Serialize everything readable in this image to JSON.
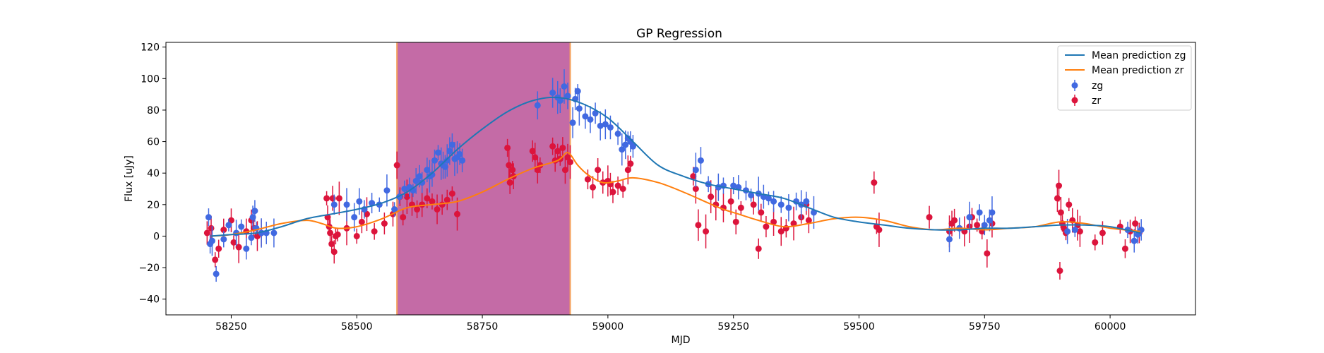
{
  "chart_data": {
    "type": "scatter",
    "title": "GP Regression",
    "xlabel": "MJD",
    "ylabel": "Flux [uJy]",
    "xlim": [
      58120,
      60170
    ],
    "ylim": [
      -50,
      123
    ],
    "xticks": [
      58250,
      58500,
      58750,
      59000,
      59250,
      59500,
      59750,
      60000
    ],
    "yticks": [
      -40,
      -20,
      0,
      20,
      40,
      60,
      80,
      100,
      120
    ],
    "grid": false,
    "legend_position": "top-right",
    "shaded_region": {
      "x0": 58580,
      "x1": 58925,
      "fill": "#c46ba6",
      "edge": "#f5a15c"
    },
    "series": [
      {
        "name": "Mean prediction zg",
        "kind": "line",
        "color": "#1f77b4",
        "x": [
          58210,
          58250,
          58300,
          58350,
          58400,
          58450,
          58500,
          58550,
          58600,
          58650,
          58700,
          58750,
          58800,
          58850,
          58900,
          58950,
          59000,
          59050,
          59100,
          59150,
          59200,
          59250,
          59300,
          59350,
          59400,
          59450,
          59500,
          59550,
          59600,
          59650,
          59700,
          59750,
          59800,
          59850,
          59900,
          59950,
          60000,
          60060
        ],
        "y": [
          0,
          1,
          2,
          6,
          11,
          14,
          17,
          21,
          28,
          40,
          55,
          68,
          79,
          86,
          88,
          84,
          75,
          60,
          45,
          38,
          33,
          30,
          27,
          24,
          18,
          12,
          9,
          7,
          5,
          4,
          4,
          5,
          5,
          6,
          7,
          7,
          6,
          2
        ]
      },
      {
        "name": "Mean prediction zr",
        "kind": "line",
        "color": "#ff7f0e",
        "x": [
          58210,
          58250,
          58300,
          58350,
          58400,
          58430,
          58460,
          58500,
          58550,
          58600,
          58650,
          58700,
          58750,
          58800,
          58850,
          58900,
          58920,
          58940,
          58960,
          58990,
          59020,
          59050,
          59100,
          59150,
          59200,
          59230,
          59260,
          59300,
          59350,
          59400,
          59450,
          59500,
          59550,
          59600,
          59650,
          59700,
          59750,
          59800,
          59850,
          59900,
          59950,
          60000,
          60060
        ],
        "y": [
          0,
          1,
          4,
          8,
          10,
          8,
          5,
          6,
          11,
          18,
          20,
          22,
          28,
          36,
          43,
          48,
          53,
          45,
          39,
          34,
          35,
          37,
          34,
          28,
          21,
          17,
          14,
          10,
          6,
          8,
          11,
          12,
          10,
          6,
          4,
          5,
          4,
          5,
          6,
          9,
          8,
          5,
          3
        ]
      },
      {
        "name": "zg",
        "kind": "errorbar",
        "color": "#4169e1",
        "x": [
          58205,
          58208,
          58212,
          58220,
          58235,
          58245,
          58260,
          58270,
          58280,
          58290,
          58293,
          58297,
          58300,
          58310,
          58320,
          58335,
          58455,
          58480,
          58495,
          58505,
          58515,
          58530,
          58545,
          58560,
          58575,
          58585,
          58595,
          58605,
          58612,
          58618,
          58625,
          58630,
          58640,
          58645,
          58650,
          58655,
          58662,
          58668,
          58672,
          58676,
          58680,
          58685,
          58690,
          58695,
          58700,
          58705,
          58710,
          58860,
          58890,
          58900,
          58905,
          58913,
          58920,
          58930,
          58935,
          58940,
          58943,
          58955,
          58965,
          58975,
          58985,
          58995,
          59005,
          59020,
          59028,
          59035,
          59040,
          59045,
          59050,
          59175,
          59185,
          59200,
          59220,
          59230,
          59250,
          59260,
          59275,
          59285,
          59300,
          59310,
          59320,
          59330,
          59345,
          59360,
          59375,
          59385,
          59395,
          59410,
          59680,
          59700,
          59720,
          59740,
          59750,
          59760,
          59765,
          59915,
          59930,
          60035,
          60048,
          60055,
          60062
        ],
        "y": [
          12,
          -5,
          -3,
          -24,
          -2,
          7,
          2,
          6,
          -8,
          -1,
          12,
          16,
          5,
          2,
          2,
          2,
          20,
          20,
          12,
          22,
          17,
          21,
          20,
          29,
          17,
          25,
          30,
          31,
          29,
          35,
          38,
          34,
          42,
          38,
          39,
          48,
          53,
          46,
          45,
          44,
          48,
          54,
          58,
          49,
          50,
          52,
          48,
          83,
          91,
          88,
          86,
          95,
          89,
          72,
          87,
          92,
          81,
          76,
          74,
          78,
          70,
          71,
          69,
          65,
          55,
          58,
          62,
          60,
          57,
          42,
          48,
          33,
          31,
          32,
          32,
          31,
          29,
          26,
          27,
          25,
          24,
          22,
          20,
          18,
          22,
          20,
          22,
          15,
          -2,
          5,
          12,
          15,
          7,
          10,
          15,
          3,
          4,
          4,
          -3,
          1,
          4
        ]
      },
      {
        "name": "zr",
        "kind": "errorbar",
        "color": "#dc143c",
        "x": [
          58202,
          58210,
          58218,
          58225,
          58235,
          58250,
          58255,
          58265,
          58280,
          58290,
          58295,
          58302,
          58310,
          58440,
          58442,
          58445,
          58447,
          58450,
          58452,
          58455,
          58458,
          58462,
          58465,
          58480,
          58500,
          58510,
          58520,
          58535,
          58555,
          58572,
          58580,
          58586,
          58592,
          58600,
          58610,
          58620,
          58630,
          58640,
          58650,
          58660,
          58670,
          58680,
          58690,
          58700,
          58800,
          58803,
          58805,
          58810,
          58812,
          58850,
          58855,
          58860,
          58865,
          58890,
          58895,
          58900,
          58905,
          58910,
          58915,
          58920,
          58925,
          58960,
          58970,
          58980,
          58990,
          59000,
          59005,
          59010,
          59020,
          59030,
          59040,
          59045,
          59170,
          59175,
          59180,
          59195,
          59205,
          59215,
          59230,
          59245,
          59255,
          59265,
          59290,
          59300,
          59305,
          59315,
          59330,
          59345,
          59355,
          59370,
          59385,
          59395,
          59400,
          59530,
          59535,
          59540,
          59640,
          59680,
          59685,
          59690,
          59700,
          59710,
          59720,
          59725,
          59735,
          59745,
          59755,
          59765,
          59895,
          59898,
          59900,
          59902,
          59905,
          59908,
          59912,
          59918,
          59925,
          59935,
          59940,
          59970,
          59985,
          60020,
          60030,
          60040,
          60050,
          60058
        ],
        "y": [
          2,
          5,
          -15,
          -8,
          4,
          10,
          -4,
          -7,
          3,
          10,
          5,
          0,
          2,
          24,
          12,
          6,
          2,
          -5,
          24,
          -10,
          0,
          1,
          24,
          5,
          0,
          9,
          14,
          3,
          8,
          14,
          45,
          25,
          12,
          25,
          20,
          17,
          20,
          24,
          22,
          17,
          20,
          23,
          27,
          14,
          56,
          45,
          34,
          42,
          38,
          54,
          50,
          42,
          45,
          57,
          48,
          54,
          49,
          56,
          42,
          50,
          47,
          36,
          31,
          42,
          34,
          35,
          33,
          28,
          32,
          30,
          42,
          46,
          38,
          30,
          7,
          3,
          25,
          20,
          18,
          22,
          9,
          18,
          20,
          -8,
          15,
          6,
          9,
          3,
          5,
          8,
          12,
          20,
          10,
          34,
          6,
          4,
          12,
          3,
          8,
          10,
          5,
          3,
          6,
          12,
          7,
          3,
          -11,
          8,
          24,
          32,
          -22,
          15,
          8,
          5,
          2,
          20,
          10,
          7,
          3,
          -4,
          2,
          6,
          -8,
          3,
          8,
          2
        ]
      }
    ]
  }
}
